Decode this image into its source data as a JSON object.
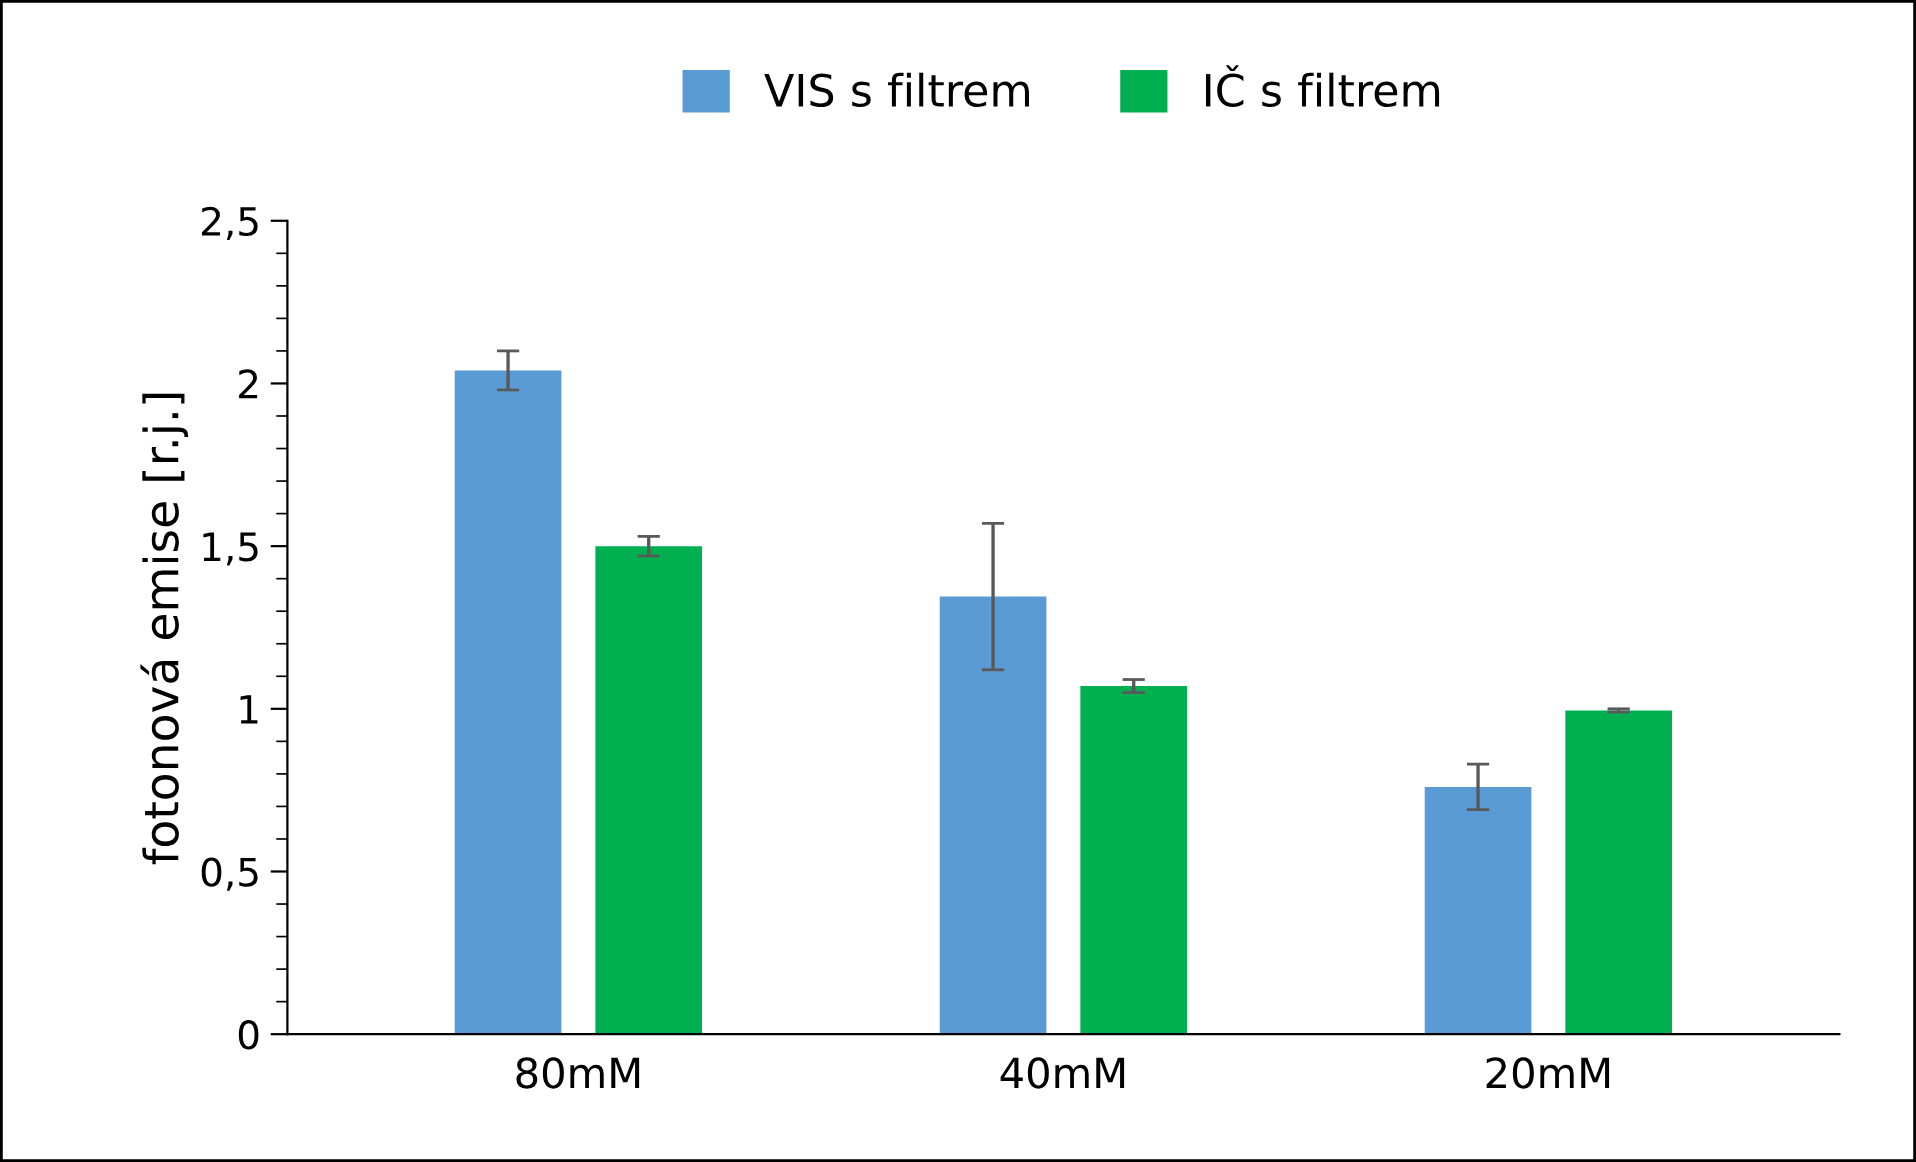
{
  "chart_data": {
    "type": "bar",
    "ylabel": "fotonová emise [r.j.]",
    "categories": [
      "80mM",
      "40mM",
      "20mM"
    ],
    "series": [
      {
        "name": "VIS s filtrem",
        "color": "#5b9bd5",
        "values": [
          2.04,
          1.345,
          0.76
        ],
        "errors": [
          0.06,
          0.225,
          0.07
        ]
      },
      {
        "name": "IČ s filtrem",
        "color": "#00b050",
        "values": [
          1.5,
          1.07,
          0.995
        ],
        "errors": [
          0.03,
          0.02,
          0.005
        ]
      }
    ],
    "ylim": [
      0,
      2.5
    ],
    "yticks": [
      0,
      {
        "value": 0.5,
        "label": "0,5"
      },
      1,
      {
        "value": 1.5,
        "label": "1,5"
      },
      2,
      {
        "value": 2.5,
        "label": "2,5"
      }
    ],
    "grid": false,
    "legend": "top"
  }
}
